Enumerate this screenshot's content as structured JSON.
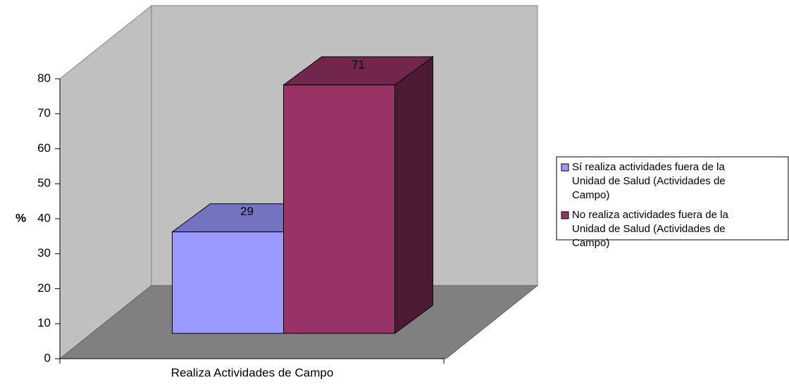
{
  "chart_data": {
    "type": "bar3d",
    "categories": [
      "Realiza Actividades de Campo"
    ],
    "ylabel": "%",
    "series": [
      {
        "name": "Sí realiza actividades fuera de la Unidad de Salud (Actividades de Campo)",
        "color": "#9999ff",
        "values": [
          29
        ]
      },
      {
        "name": "No realiza actividades fuera de la Unidad de Salud (Actividades de Campo)",
        "color": "#993366",
        "values": [
          71
        ]
      }
    ],
    "ylim": [
      0,
      80
    ],
    "yticks": [
      0,
      10,
      20,
      30,
      40,
      50,
      60,
      70,
      80
    ],
    "legend": "right"
  }
}
